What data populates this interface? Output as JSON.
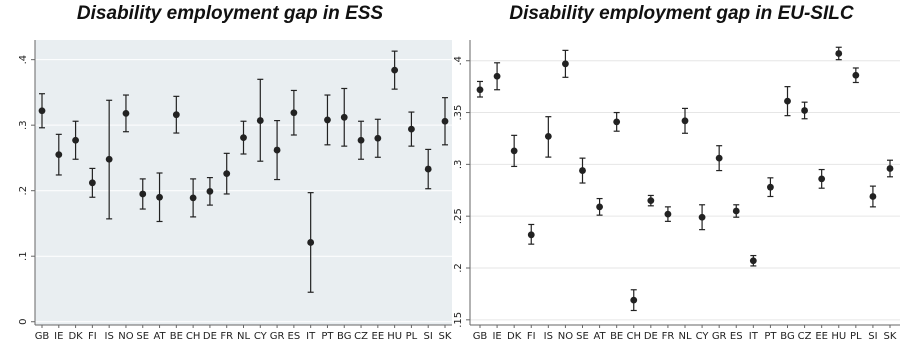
{
  "chart_data": [
    {
      "type": "scatter",
      "title": "Disability employment gap in ESS",
      "xlabel": "",
      "ylabel": "",
      "categories": [
        "GB",
        "IE",
        "DK",
        "FI",
        "IS",
        "NO",
        "SE",
        "AT",
        "BE",
        "CH",
        "DE",
        "FR",
        "NL",
        "CY",
        "GR",
        "ES",
        "IT",
        "PT",
        "BG",
        "CZ",
        "EE",
        "HU",
        "PL",
        "SI",
        "SK"
      ],
      "values": [
        0.322,
        0.255,
        0.277,
        0.212,
        0.248,
        0.318,
        0.195,
        0.19,
        0.316,
        0.189,
        0.199,
        0.226,
        0.281,
        0.307,
        0.262,
        0.319,
        0.121,
        0.308,
        0.312,
        0.277,
        0.28,
        0.384,
        0.294,
        0.233,
        0.306
      ],
      "lower": [
        0.296,
        0.224,
        0.248,
        0.19,
        0.157,
        0.29,
        0.172,
        0.153,
        0.288,
        0.16,
        0.178,
        0.195,
        0.256,
        0.245,
        0.217,
        0.285,
        0.045,
        0.27,
        0.268,
        0.248,
        0.251,
        0.355,
        0.268,
        0.203,
        0.27
      ],
      "upper": [
        0.348,
        0.286,
        0.306,
        0.234,
        0.338,
        0.346,
        0.218,
        0.227,
        0.344,
        0.218,
        0.22,
        0.257,
        0.306,
        0.37,
        0.307,
        0.353,
        0.197,
        0.346,
        0.356,
        0.306,
        0.309,
        0.413,
        0.32,
        0.263,
        0.342
      ],
      "yticks": [
        "0",
        ".1",
        ".2",
        ".3",
        ".4"
      ],
      "ytick_values": [
        0,
        0.1,
        0.2,
        0.3,
        0.4
      ],
      "ylim": [
        -0.005,
        0.43
      ],
      "grid": true,
      "colors": {
        "background": "#e9eef1",
        "grid": "#ffffff",
        "marker": "#222222",
        "text": "#222222"
      }
    },
    {
      "type": "scatter",
      "title": "Disability employment gap in EU-SILC",
      "xlabel": "",
      "ylabel": "",
      "categories": [
        "GB",
        "IE",
        "DK",
        "FI",
        "IS",
        "NO",
        "SE",
        "AT",
        "BE",
        "CH",
        "DE",
        "FR",
        "NL",
        "CY",
        "GR",
        "ES",
        "IT",
        "PT",
        "BG",
        "CZ",
        "EE",
        "HU",
        "PL",
        "SI",
        "SK"
      ],
      "values": [
        0.372,
        0.385,
        0.313,
        0.232,
        0.327,
        0.397,
        0.294,
        0.259,
        0.341,
        0.169,
        0.265,
        0.252,
        0.342,
        0.249,
        0.306,
        0.255,
        0.207,
        0.278,
        0.361,
        0.352,
        0.286,
        0.407,
        0.386,
        0.269,
        0.296
      ],
      "lower": [
        0.365,
        0.372,
        0.298,
        0.223,
        0.307,
        0.384,
        0.282,
        0.251,
        0.332,
        0.159,
        0.26,
        0.245,
        0.33,
        0.237,
        0.294,
        0.249,
        0.202,
        0.269,
        0.347,
        0.344,
        0.277,
        0.401,
        0.379,
        0.259,
        0.288
      ],
      "upper": [
        0.38,
        0.398,
        0.328,
        0.242,
        0.346,
        0.41,
        0.306,
        0.267,
        0.35,
        0.179,
        0.27,
        0.259,
        0.354,
        0.261,
        0.318,
        0.261,
        0.212,
        0.287,
        0.375,
        0.36,
        0.295,
        0.413,
        0.393,
        0.279,
        0.304
      ],
      "yticks": [
        ".15",
        ".2",
        ".25",
        ".3",
        ".35",
        ".4"
      ],
      "ytick_values": [
        0.15,
        0.2,
        0.25,
        0.3,
        0.35,
        0.4
      ],
      "ylim": [
        0.145,
        0.42
      ],
      "grid": true,
      "colors": {
        "background": "#ffffff",
        "grid": "#e6e6e6",
        "marker": "#222222",
        "text": "#222222"
      }
    }
  ]
}
